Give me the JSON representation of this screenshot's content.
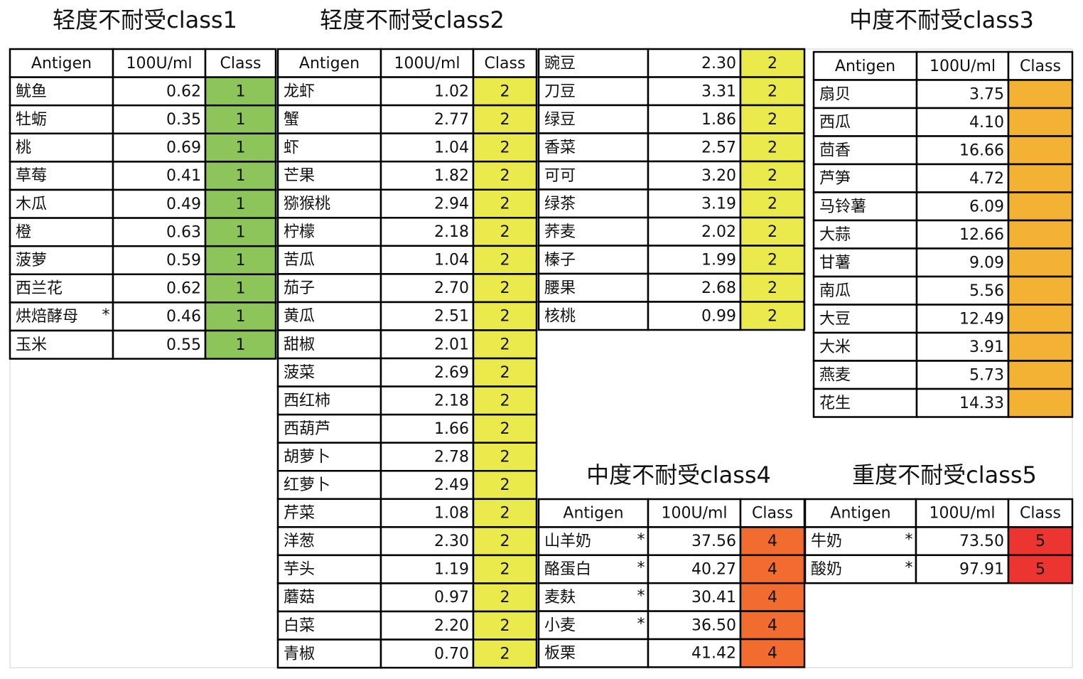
{
  "tables": [
    {
      "title": "轻度不耐受class1",
      "header": [
        "Antigen",
        "100U/ml",
        "Class"
      ],
      "color": "#8dc55b",
      "rows": [
        {
          "antigen": "鱿鱼",
          "value": "0.62",
          "class": "1"
        },
        {
          "antigen": "牡蛎",
          "value": "0.35",
          "class": "1"
        },
        {
          "antigen": "桃",
          "value": "0.69",
          "class": "1"
        },
        {
          "antigen": "草莓",
          "value": "0.41",
          "class": "1"
        },
        {
          "antigen": "木瓜",
          "value": "0.49",
          "class": "1"
        },
        {
          "antigen": "橙",
          "value": "0.63",
          "class": "1"
        },
        {
          "antigen": "菠萝",
          "value": "0.59",
          "class": "1"
        },
        {
          "antigen": "西兰花",
          "value": "0.62",
          "class": "1"
        },
        {
          "antigen": "烘焙酵母",
          "note": "*",
          "value": "0.46",
          "class": "1"
        },
        {
          "antigen": "玉米",
          "value": "0.55",
          "class": "1"
        }
      ]
    },
    {
      "title": "轻度不耐受class2",
      "header": [
        "Antigen",
        "100U/ml",
        "Class"
      ],
      "color": "#eaea4c",
      "rows": [
        {
          "antigen": "龙虾",
          "value": "1.02",
          "class": "2"
        },
        {
          "antigen": "蟹",
          "value": "2.77",
          "class": "2"
        },
        {
          "antigen": "虾",
          "value": "1.04",
          "class": "2"
        },
        {
          "antigen": "芒果",
          "value": "1.82",
          "class": "2"
        },
        {
          "antigen": "猕猴桃",
          "value": "2.94",
          "class": "2"
        },
        {
          "antigen": "柠檬",
          "value": "2.18",
          "class": "2"
        },
        {
          "antigen": "苦瓜",
          "value": "1.04",
          "class": "2"
        },
        {
          "antigen": "茄子",
          "value": "2.70",
          "class": "2"
        },
        {
          "antigen": "黄瓜",
          "value": "2.51",
          "class": "2"
        },
        {
          "antigen": "甜椒",
          "value": "2.01",
          "class": "2"
        },
        {
          "antigen": "菠菜",
          "value": "2.69",
          "class": "2"
        },
        {
          "antigen": "西红柿",
          "value": "2.18",
          "class": "2"
        },
        {
          "antigen": "西葫芦",
          "value": "1.66",
          "class": "2"
        },
        {
          "antigen": "胡萝卜",
          "value": "2.78",
          "class": "2"
        },
        {
          "antigen": "红萝卜",
          "value": "2.49",
          "class": "2"
        },
        {
          "antigen": "芹菜",
          "value": "1.08",
          "class": "2"
        },
        {
          "antigen": "洋葱",
          "value": "2.30",
          "class": "2"
        },
        {
          "antigen": "芋头",
          "value": "1.19",
          "class": "2"
        },
        {
          "antigen": "蘑菇",
          "value": "0.97",
          "class": "2"
        },
        {
          "antigen": "白菜",
          "value": "2.20",
          "class": "2"
        },
        {
          "antigen": "青椒",
          "value": "0.70",
          "class": "2"
        }
      ]
    },
    {
      "color": "#eaea4c",
      "rows": [
        {
          "antigen": "豌豆",
          "value": "2.30",
          "class": "2"
        },
        {
          "antigen": "刀豆",
          "value": "3.31",
          "class": "2"
        },
        {
          "antigen": "绿豆",
          "value": "1.86",
          "class": "2"
        },
        {
          "antigen": "香菜",
          "value": "2.57",
          "class": "2"
        },
        {
          "antigen": "可可",
          "value": "3.20",
          "class": "2"
        },
        {
          "antigen": "绿茶",
          "value": "3.19",
          "class": "2"
        },
        {
          "antigen": "荞麦",
          "value": "2.02",
          "class": "2"
        },
        {
          "antigen": "榛子",
          "value": "1.99",
          "class": "2"
        },
        {
          "antigen": "腰果",
          "value": "2.68",
          "class": "2"
        },
        {
          "antigen": "核桃",
          "value": "0.99",
          "class": "2"
        }
      ]
    },
    {
      "title": "中度不耐受class3",
      "header": [
        "Antigen",
        "100U/ml",
        "Class"
      ],
      "color": "#f4b234",
      "rows": [
        {
          "antigen": "扇贝",
          "value": "3.75"
        },
        {
          "antigen": "西瓜",
          "value": "4.10"
        },
        {
          "antigen": "茴香",
          "value": "16.66"
        },
        {
          "antigen": "芦笋",
          "value": "4.72"
        },
        {
          "antigen": "马铃薯",
          "value": "6.09"
        },
        {
          "antigen": "大蒜",
          "value": "12.66"
        },
        {
          "antigen": "甘薯",
          "value": "9.09"
        },
        {
          "antigen": "南瓜",
          "value": "5.56"
        },
        {
          "antigen": "大豆",
          "value": "12.49"
        },
        {
          "antigen": "大米",
          "value": "3.91"
        },
        {
          "antigen": "燕麦",
          "value": "5.73"
        },
        {
          "antigen": "花生",
          "value": "14.33"
        }
      ]
    },
    {
      "title": "中度不耐受class4",
      "header": [
        "Antigen",
        "100U/ml",
        "Class"
      ],
      "color": "#f26c30",
      "rows": [
        {
          "antigen": "山羊奶",
          "note": "*",
          "value": "37.56",
          "class": "4"
        },
        {
          "antigen": "酪蛋白",
          "note": "*",
          "value": "40.27",
          "class": "4"
        },
        {
          "antigen": "麦麸",
          "note": "*",
          "value": "30.41",
          "class": "4"
        },
        {
          "antigen": "小麦",
          "note": "*",
          "value": "36.50",
          "class": "4"
        },
        {
          "antigen": "板栗",
          "value": "41.42",
          "class": "4"
        }
      ]
    },
    {
      "title": "重度不耐受class5",
      "header": [
        "Antigen",
        "100U/ml",
        "Class"
      ],
      "color": "#ec3430",
      "rows": [
        {
          "antigen": "牛奶",
          "note": "*",
          "value": "73.50",
          "class": "5"
        },
        {
          "antigen": "酸奶",
          "note": "*",
          "value": "97.91",
          "class": "5"
        }
      ]
    }
  ]
}
